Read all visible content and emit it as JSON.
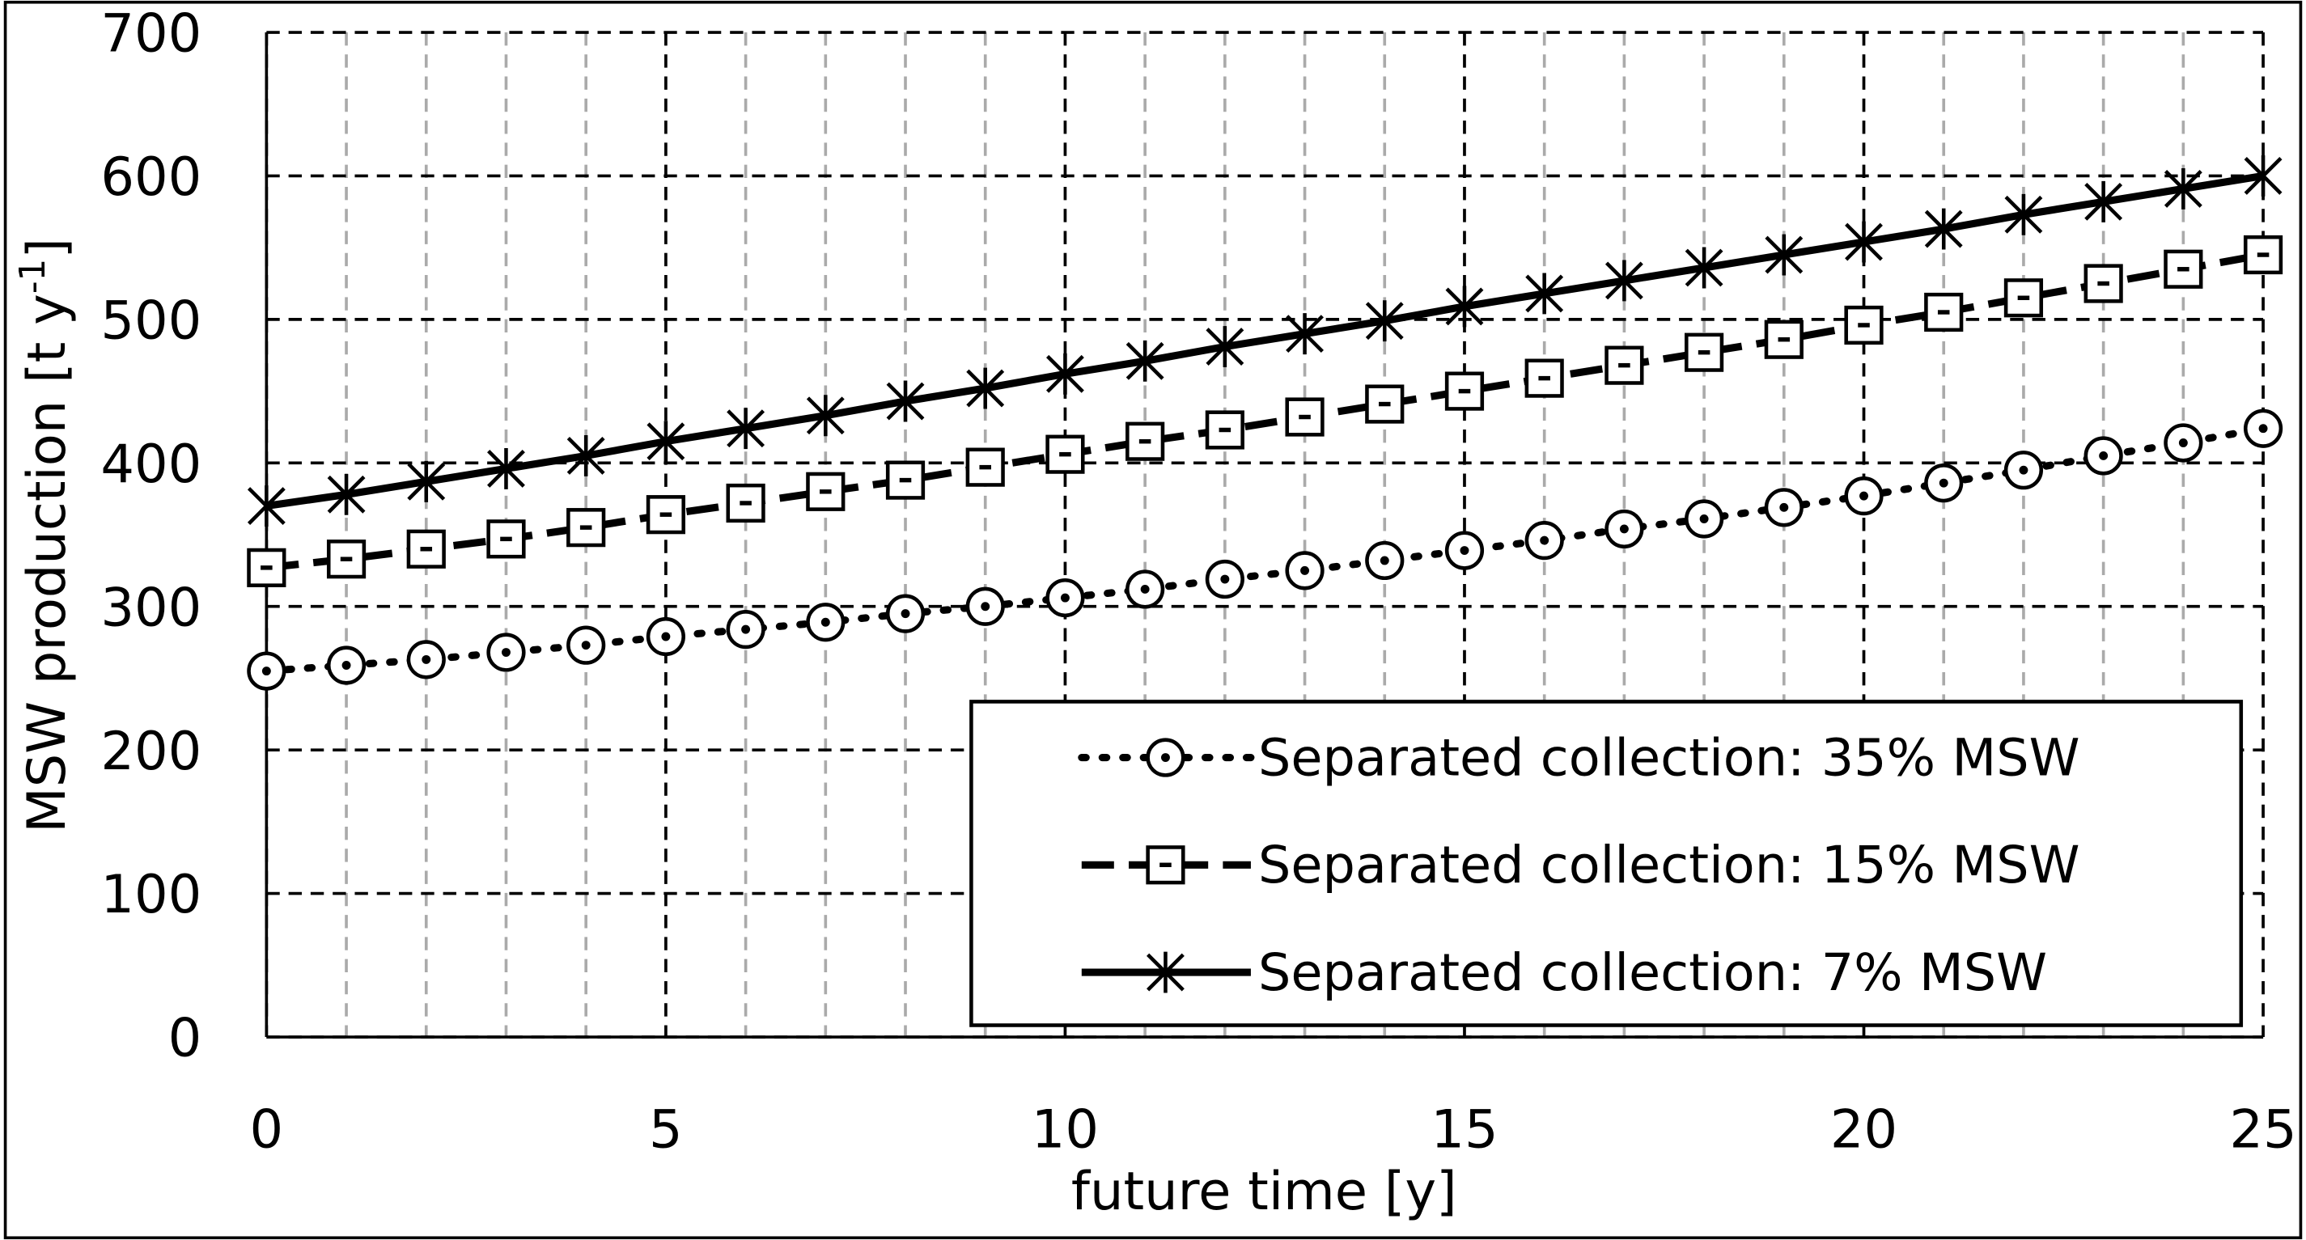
{
  "chart_data": {
    "type": "line",
    "xlabel": "future time [y]",
    "ylabel_parts": [
      "MSW production [t y",
      "-1",
      "]"
    ],
    "x": [
      0,
      1,
      2,
      3,
      4,
      5,
      6,
      7,
      8,
      9,
      10,
      11,
      12,
      13,
      14,
      15,
      16,
      17,
      18,
      19,
      20,
      21,
      22,
      23,
      24,
      25
    ],
    "series": [
      {
        "name": "Separated collection: 35% MSW",
        "color": "#000000",
        "style": "dotted",
        "marker": "circle",
        "values": [
          255,
          259,
          263,
          268,
          273,
          279,
          284,
          289,
          295,
          300,
          306,
          312,
          319,
          325,
          332,
          339,
          346,
          354,
          361,
          369,
          377,
          386,
          395,
          405,
          414,
          424
        ]
      },
      {
        "name": "Separated collection: 15% MSW",
        "color": "#000000",
        "style": "dashed",
        "marker": "square",
        "values": [
          327,
          333,
          340,
          347,
          355,
          364,
          372,
          380,
          388,
          397,
          406,
          415,
          423,
          432,
          441,
          450,
          459,
          468,
          477,
          486,
          496,
          505,
          515,
          525,
          535,
          545
        ]
      },
      {
        "name": "Separated collection: 7% MSW",
        "color": "#000000",
        "style": "solid",
        "marker": "star",
        "values": [
          370,
          378,
          387,
          396,
          405,
          415,
          424,
          433,
          443,
          452,
          462,
          471,
          481,
          490,
          499,
          509,
          518,
          527,
          536,
          545,
          554,
          563,
          573,
          582,
          591,
          600
        ]
      }
    ],
    "xlim": [
      0,
      25
    ],
    "xticks": [
      0,
      5,
      10,
      15,
      20,
      25
    ],
    "ylim": [
      0,
      700
    ],
    "yticks": [
      0,
      100,
      200,
      300,
      400,
      500,
      600,
      700
    ],
    "grid": true,
    "legend": "lower right"
  }
}
